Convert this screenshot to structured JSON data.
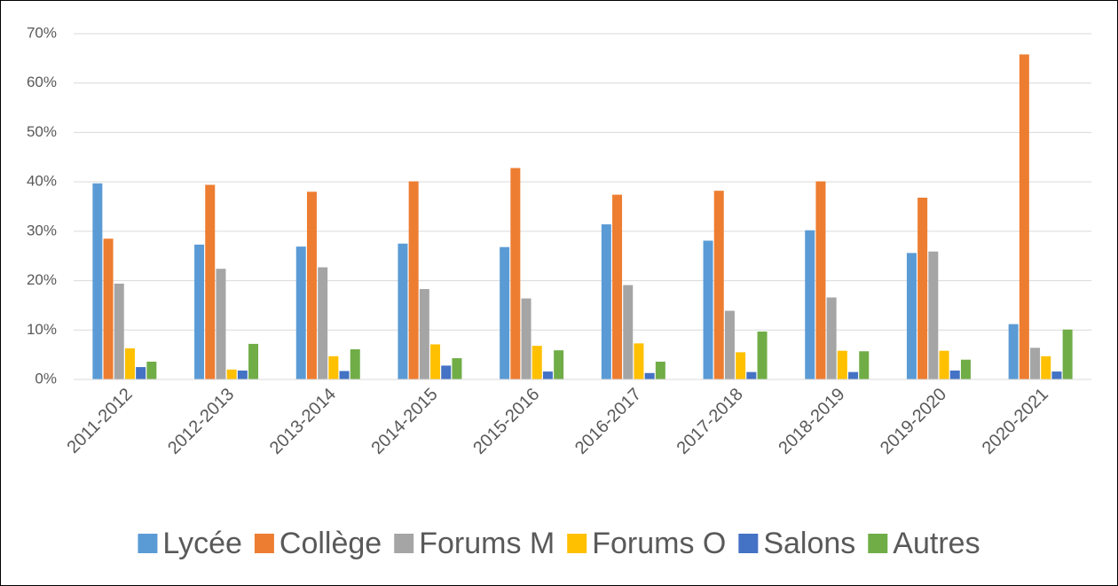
{
  "chart_data": {
    "type": "bar",
    "categories": [
      "2011-2012",
      "2012-2013",
      "2013-2014",
      "2014-2015",
      "2015-2016",
      "2016-2017",
      "2017-2018",
      "2018-2019",
      "2019-2020",
      "2020-2021"
    ],
    "series": [
      {
        "name": "Lycée",
        "color": "#5b9bd5",
        "values": [
          39.7,
          27.3,
          26.9,
          27.5,
          26.8,
          31.4,
          28.1,
          30.2,
          25.6,
          11.2
        ]
      },
      {
        "name": "Collège",
        "color": "#ed7d31",
        "values": [
          28.5,
          39.4,
          38.0,
          40.1,
          42.8,
          37.4,
          38.2,
          40.1,
          36.8,
          65.8
        ]
      },
      {
        "name": "Forums M",
        "color": "#a5a5a5",
        "values": [
          19.4,
          22.4,
          22.7,
          18.3,
          16.4,
          19.1,
          13.9,
          16.6,
          25.9,
          6.4
        ]
      },
      {
        "name": "Forums O",
        "color": "#ffc000",
        "values": [
          6.3,
          2.0,
          4.7,
          7.1,
          6.8,
          7.3,
          5.5,
          5.8,
          5.8,
          4.7
        ]
      },
      {
        "name": "Salons",
        "color": "#4472c4",
        "values": [
          2.5,
          1.8,
          1.7,
          2.8,
          1.6,
          1.3,
          1.5,
          1.5,
          1.8,
          1.6
        ]
      },
      {
        "name": "Autres",
        "color": "#70ad47",
        "values": [
          3.6,
          7.2,
          6.1,
          4.3,
          5.9,
          3.6,
          9.7,
          5.7,
          4.0,
          10.1
        ]
      }
    ],
    "ylim": [
      0,
      70
    ],
    "yticks": [
      {
        "value": 0,
        "label": "0%"
      },
      {
        "value": 10,
        "label": "10%"
      },
      {
        "value": 20,
        "label": "20%"
      },
      {
        "value": 30,
        "label": "30%"
      },
      {
        "value": 40,
        "label": "40%"
      },
      {
        "value": 50,
        "label": "50%"
      },
      {
        "value": 60,
        "label": "60%"
      },
      {
        "value": 70,
        "label": "70%"
      }
    ],
    "grid": true,
    "legend": "bottom"
  }
}
